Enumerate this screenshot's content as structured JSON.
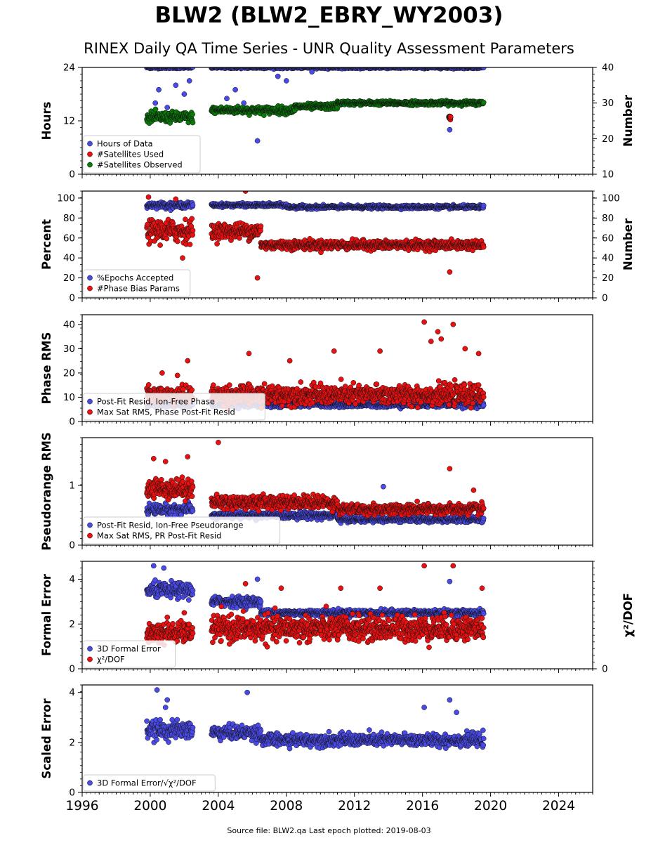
{
  "header": {
    "title": "BLW2 (BLW2_EBRY_WY2003)",
    "subtitle": "RINEX Daily QA Time Series - UNR Quality Assessment Parameters"
  },
  "footer": {
    "text": "Source file: BLW2.qa Last epoch plotted: 2019-08-03"
  },
  "colors": {
    "blue": "#4a4ae8",
    "red": "#e81010",
    "green": "#0a7a0a"
  },
  "chart_data": [
    {
      "type": "scatter",
      "ylabel": "Hours",
      "ylabel_right": "Number",
      "ylim": [
        0,
        24
      ],
      "yticks": [
        0,
        12,
        24
      ],
      "ylim_right": [
        10,
        40
      ],
      "yticks_right": [
        10,
        20,
        30,
        40
      ],
      "legend": "bottom-left",
      "series": [
        {
          "name": "Hours of Data",
          "axis": "left",
          "color": "#4a4ae8",
          "segments": [
            {
              "x": [
                1999.8,
                2002.5
              ],
              "y": 24,
              "noise": 0.2,
              "outliers": [
                [
                  2000.3,
                  16
                ],
                [
                  2000.5,
                  19
                ],
                [
                  2001.0,
                  15
                ],
                [
                  2001.5,
                  20
                ],
                [
                  2002.0,
                  18
                ],
                [
                  2002.3,
                  21
                ]
              ]
            },
            {
              "x": [
                2003.6,
                2019.59
              ],
              "y": 24,
              "noise": 0.2,
              "outliers": [
                [
                  2004.5,
                  17
                ],
                [
                  2005.0,
                  19
                ],
                [
                  2005.5,
                  16
                ],
                [
                  2006.3,
                  7.5
                ],
                [
                  2007.5,
                  22
                ],
                [
                  2008.0,
                  21
                ],
                [
                  2009.5,
                  23
                ],
                [
                  2017.6,
                  10
                ]
              ]
            }
          ]
        },
        {
          "name": "#Satellites Used",
          "axis": "right",
          "color": "#e81010",
          "segments": [
            {
              "x": [
                2017.55,
                2017.65
              ],
              "y": 26,
              "noise": 0.3
            }
          ]
        },
        {
          "name": "#Satellites Observed",
          "axis": "right",
          "color": "#0a7a0a",
          "segments": [
            {
              "x": [
                1999.8,
                2002.5
              ],
              "y": 26,
              "noise": 1.3
            },
            {
              "x": [
                2003.6,
                2008.5
              ],
              "y": 28,
              "noise": 0.9
            },
            {
              "x": [
                2008.5,
                2011.0
              ],
              "y": 29,
              "noise": 0.7
            },
            {
              "x": [
                2011.0,
                2019.59
              ],
              "y": 30,
              "noise": 0.5
            }
          ]
        }
      ]
    },
    {
      "type": "scatter",
      "ylabel": "Percent",
      "ylabel_right": "Number",
      "ylim": [
        0,
        107
      ],
      "yticks": [
        0,
        20,
        40,
        60,
        80,
        100
      ],
      "ylim_right": [
        0,
        107
      ],
      "yticks_right": [
        0,
        20,
        40,
        60,
        80,
        100
      ],
      "legend": "bottom-left",
      "series": [
        {
          "name": "%Epochs Accepted",
          "axis": "left",
          "color": "#4a4ae8",
          "segments": [
            {
              "x": [
                1999.8,
                2002.5
              ],
              "y": 93,
              "noise": 2.5
            },
            {
              "x": [
                2003.6,
                2008.0
              ],
              "y": 93,
              "noise": 1.5
            },
            {
              "x": [
                2008.0,
                2019.59
              ],
              "y": 91,
              "noise": 1.5
            }
          ]
        },
        {
          "name": "#Phase Bias Params",
          "axis": "right",
          "color": "#e81010",
          "segments": [
            {
              "x": [
                1999.8,
                2002.5
              ],
              "y": 67,
              "noise": 10,
              "outliers": [
                [
                  1999.9,
                  101
                ],
                [
                  2001.5,
                  99
                ],
                [
                  2001.9,
                  40
                ]
              ]
            },
            {
              "x": [
                2003.6,
                2006.5
              ],
              "y": 67,
              "noise": 7,
              "outliers": [
                [
                  2005.6,
                  107
                ],
                [
                  2006.3,
                  20
                ]
              ]
            },
            {
              "x": [
                2006.5,
                2019.59
              ],
              "y": 53,
              "noise": 4,
              "outliers": [
                [
                  2017.6,
                  26
                ]
              ]
            }
          ]
        }
      ]
    },
    {
      "type": "scatter",
      "ylabel": "Phase RMS",
      "ylim": [
        0,
        44
      ],
      "yticks": [
        0,
        10,
        20,
        30,
        40
      ],
      "legend": "bottom-left",
      "series": [
        {
          "name": "Post-Fit Resid, Ion-Free Phase",
          "axis": "left",
          "color": "#4a4ae8",
          "segments": [
            {
              "x": [
                1999.8,
                2002.5
              ],
              "y": 7,
              "noise": 1
            },
            {
              "x": [
                2003.6,
                2019.59
              ],
              "y": 7,
              "noise": 1
            }
          ]
        },
        {
          "name": "Max Sat RMS, Phase Post-Fit Resid",
          "axis": "left",
          "color": "#e81010",
          "segments": [
            {
              "x": [
                1999.8,
                2002.5
              ],
              "y": 11,
              "noise": 3,
              "outliers": [
                [
                  2000.7,
                  20
                ],
                [
                  2001.6,
                  19
                ],
                [
                  2002.2,
                  25
                ]
              ]
            },
            {
              "x": [
                2003.6,
                2019.59
              ],
              "y": 11,
              "noise": 3.5,
              "outliers": [
                [
                  2005.8,
                  28
                ],
                [
                  2008.2,
                  25
                ],
                [
                  2010.8,
                  29
                ],
                [
                  2013.5,
                  29
                ],
                [
                  2016.1,
                  41
                ],
                [
                  2016.9,
                  37
                ],
                [
                  2017.8,
                  40
                ],
                [
                  2018.5,
                  30
                ],
                [
                  2019.3,
                  28
                ],
                [
                  2016.5,
                  33
                ],
                [
                  2017.1,
                  34
                ]
              ]
            }
          ]
        }
      ]
    },
    {
      "type": "scatter",
      "ylabel": "Pseudorange RMS",
      "ylim": [
        0,
        1.8
      ],
      "yticks": [
        0,
        1
      ],
      "legend": "bottom-left",
      "series": [
        {
          "name": "Post-Fit Resid, Ion-Free Pseudorange",
          "axis": "left",
          "color": "#4a4ae8",
          "segments": [
            {
              "x": [
                1999.8,
                2002.5
              ],
              "y": 0.6,
              "noise": 0.08
            },
            {
              "x": [
                2003.6,
                2011.0
              ],
              "y": 0.5,
              "noise": 0.05
            },
            {
              "x": [
                2011.0,
                2019.59
              ],
              "y": 0.43,
              "noise": 0.04,
              "outliers": [
                [
                  2013.7,
                  0.98
                ]
              ]
            }
          ]
        },
        {
          "name": "Max Sat RMS, PR Post-Fit Resid",
          "axis": "left",
          "color": "#e81010",
          "segments": [
            {
              "x": [
                1999.8,
                2002.5
              ],
              "y": 0.95,
              "noise": 0.15,
              "outliers": [
                [
                  2000.2,
                  1.45
                ],
                [
                  2000.9,
                  1.4
                ],
                [
                  2002.2,
                  1.48
                ]
              ]
            },
            {
              "x": [
                2003.6,
                2011.0
              ],
              "y": 0.72,
              "noise": 0.1,
              "outliers": [
                [
                  2004.0,
                  1.72
                ]
              ]
            },
            {
              "x": [
                2011.0,
                2019.59
              ],
              "y": 0.6,
              "noise": 0.08,
              "outliers": [
                [
                  2017.6,
                  1.28
                ],
                [
                  2019.0,
                  0.92
                ]
              ]
            }
          ]
        }
      ]
    },
    {
      "type": "scatter",
      "ylabel": "Formal Error",
      "ylabel_right": "χ²/DOF",
      "ylim": [
        0,
        4.8
      ],
      "yticks": [
        0,
        2,
        4
      ],
      "ylim_right": [
        0,
        4.8
      ],
      "yticks_right": [
        0
      ],
      "legend": "bottom-left",
      "series": [
        {
          "name": "3D Formal Error",
          "axis": "left",
          "color": "#4a4ae8",
          "segments": [
            {
              "x": [
                1999.8,
                2002.5
              ],
              "y": 3.5,
              "noise": 0.3,
              "outliers": [
                [
                  2000.2,
                  4.6
                ],
                [
                  2000.8,
                  4.5
                ]
              ]
            },
            {
              "x": [
                2003.6,
                2006.5
              ],
              "y": 3.0,
              "noise": 0.2,
              "outliers": [
                [
                  2006.3,
                  4.0
                ]
              ]
            },
            {
              "x": [
                2006.5,
                2019.59
              ],
              "y": 2.5,
              "noise": 0.12,
              "outliers": [
                [
                  2017.6,
                  3.9
                ]
              ]
            }
          ]
        },
        {
          "name": "χ²/DOF",
          "axis": "right",
          "color": "#e81010",
          "segments": [
            {
              "x": [
                1999.8,
                2002.5
              ],
              "y": 1.6,
              "noise": 0.4,
              "outliers": [
                [
                  2001.0,
                  2.3
                ],
                [
                  2002.0,
                  2.5
                ]
              ]
            },
            {
              "x": [
                2003.6,
                2019.59
              ],
              "y": 1.8,
              "noise": 0.5,
              "outliers": [
                [
                  2005.6,
                  3.8
                ],
                [
                  2007.7,
                  3.6
                ],
                [
                  2011.2,
                  3.6
                ],
                [
                  2013.5,
                  3.6
                ],
                [
                  2016.1,
                  4.6
                ],
                [
                  2017.8,
                  4.6
                ],
                [
                  2019.5,
                  3.6
                ]
              ]
            }
          ]
        }
      ]
    },
    {
      "type": "scatter",
      "ylabel": "Scaled Error",
      "ylim": [
        0,
        4.3
      ],
      "yticks": [
        0,
        2,
        4
      ],
      "legend": "bottom-left",
      "series": [
        {
          "name": "3D Formal Error/√χ²/DOF",
          "axis": "left",
          "color": "#4a4ae8",
          "segments": [
            {
              "x": [
                1999.8,
                2002.5
              ],
              "y": 2.5,
              "noise": 0.3,
              "outliers": [
                [
                  2000.4,
                  4.1
                ],
                [
                  2001.0,
                  3.7
                ],
                [
                  2000.9,
                  3.4
                ]
              ]
            },
            {
              "x": [
                2003.6,
                2006.5
              ],
              "y": 2.4,
              "noise": 0.25,
              "outliers": [
                [
                  2005.7,
                  4.0
                ]
              ]
            },
            {
              "x": [
                2006.5,
                2019.59
              ],
              "y": 2.1,
              "noise": 0.22,
              "outliers": [
                [
                  2017.6,
                  3.7
                ],
                [
                  2016.1,
                  3.4
                ],
                [
                  2018.0,
                  3.2
                ]
              ]
            }
          ]
        }
      ]
    }
  ],
  "xaxis": {
    "xlim": [
      1996,
      2026
    ],
    "ticks": [
      1996,
      2000,
      2004,
      2008,
      2012,
      2016,
      2020,
      2024
    ]
  }
}
